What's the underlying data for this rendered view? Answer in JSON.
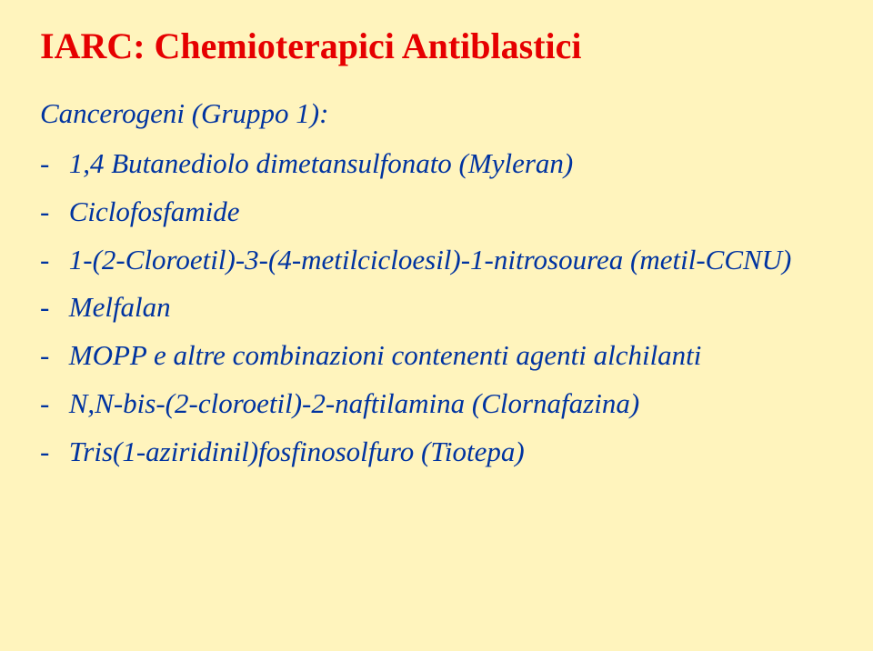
{
  "colors": {
    "background": "#fff4bd",
    "title": "#e60000",
    "body": "#0033a0"
  },
  "typography": {
    "font_family": "Comic Sans MS",
    "title_fontsize": 40,
    "body_fontsize": 31,
    "italic": true
  },
  "title": "IARC: Chemioterapici Antiblastici",
  "subtitle": "Cancerogeni (Gruppo 1):",
  "items": [
    "1,4 Butanediolo dimetansulfonato (Myleran)",
    "Ciclofosfamide",
    "1-(2-Cloroetil)-3-(4-metilcicloesil)-1-nitrosourea (metil-CCNU)",
    "Melfalan",
    "MOPP e altre combinazioni contenenti agenti alchilanti",
    "N,N-bis-(2-cloroetil)-2-naftilamina (Clornafazina)",
    "Tris(1-aziridinil)fosfinosolfuro (Tiotepa)"
  ]
}
